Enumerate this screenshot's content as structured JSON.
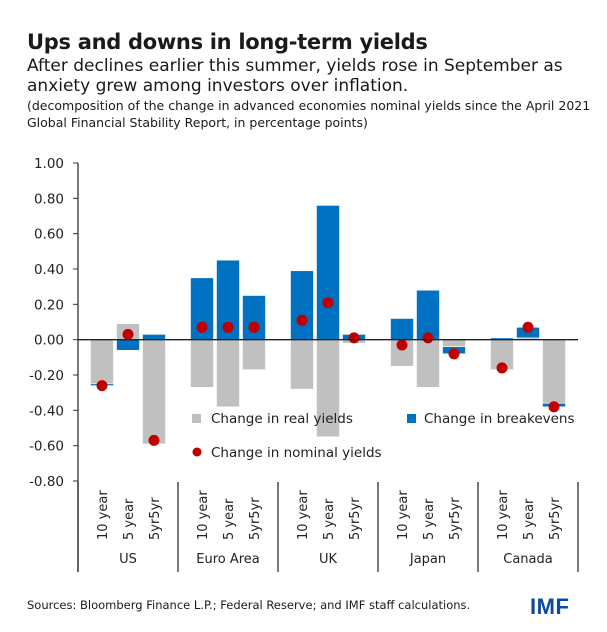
{
  "header": {
    "title": "Ups and downs in long-term yields",
    "subtitle": "After declines earlier this summer, yields rose in September as anxiety grew among investors over inflation.",
    "note": "(decomposition of the change in advanced economies nominal yields since the April 2021 Global Financial Stability Report, in percentage points)"
  },
  "footer": {
    "source": "Sources: Bloomberg Finance L.P.; Federal Reserve; and IMF staff calculations.",
    "logo": "IMF"
  },
  "colors": {
    "real": "#c0c0c0",
    "breakeven": "#0070c0",
    "nominal": "#c00000",
    "logo": "#0a4a9f"
  },
  "chart_data": {
    "type": "bar",
    "stacked": true,
    "title": "Ups and downs in long-term yields",
    "xlabel": "",
    "ylabel": "",
    "ylim": [
      -0.8,
      1.0
    ],
    "yticks": [
      "1.00",
      "0.80",
      "0.60",
      "0.40",
      "0.20",
      "0.00",
      "-0.20",
      "-0.40",
      "-0.60",
      "-0.80"
    ],
    "ytick_values": [
      1.0,
      0.8,
      0.6,
      0.4,
      0.2,
      0.0,
      -0.2,
      -0.4,
      -0.6,
      -0.8
    ],
    "grid": false,
    "legend_position": "bottom-center-inside",
    "groups": [
      "US",
      "Euro Area",
      "UK",
      "Japan",
      "Canada"
    ],
    "categories": [
      "10 year",
      "5 year",
      "5yr5yr"
    ],
    "series": [
      {
        "name": "Change in real yields",
        "kind": "bar",
        "values": [
          [
            -0.25,
            0.09,
            -0.59
          ],
          [
            -0.27,
            -0.38,
            -0.17
          ],
          [
            -0.28,
            -0.55,
            -0.02
          ],
          [
            -0.15,
            -0.27,
            -0.04
          ],
          [
            -0.17,
            0.01,
            -0.36
          ]
        ]
      },
      {
        "name": "Change in breakevens",
        "kind": "bar",
        "values": [
          [
            -0.01,
            -0.06,
            0.03
          ],
          [
            0.35,
            0.45,
            0.25
          ],
          [
            0.39,
            0.76,
            0.03
          ],
          [
            0.12,
            0.28,
            -0.04
          ],
          [
            0.01,
            0.06,
            -0.02
          ]
        ]
      },
      {
        "name": "Change in nominal yields",
        "kind": "point",
        "values": [
          [
            -0.26,
            0.03,
            -0.57
          ],
          [
            0.07,
            0.07,
            0.07
          ],
          [
            0.11,
            0.21,
            0.01
          ],
          [
            -0.03,
            0.01,
            -0.08
          ],
          [
            -0.16,
            0.07,
            -0.38
          ]
        ]
      }
    ]
  }
}
